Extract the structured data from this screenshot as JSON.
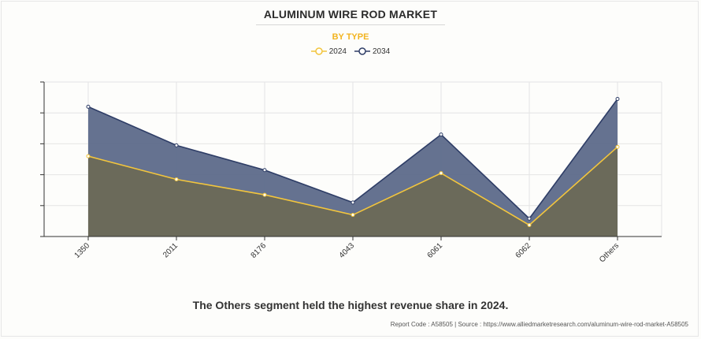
{
  "title": "ALUMINUM WIRE ROD MARKET",
  "subtitle": "BY TYPE",
  "caption": "The Others segment held the highest revenue share in 2024.",
  "footer": {
    "report_code": "Report Code : A58505",
    "separator": "|",
    "source": "Source : https://www.alliedmarketresearch.com/aluminum-wire-rod-market-A58505"
  },
  "colors": {
    "series_2024_line": "#f2c53d",
    "series_2024_fill": "#6b6a5a",
    "series_2034_line": "#2e3d66",
    "series_2034_fill": "#5d6a8a",
    "grid": "#e4e4e4",
    "axis": "#333333"
  },
  "chart_data": {
    "type": "area",
    "categories": [
      "1350",
      "2011",
      "8176",
      "4043",
      "6061",
      "6062",
      "Others"
    ],
    "series": [
      {
        "name": "2024",
        "values": [
          2.6,
          1.85,
          1.35,
          0.7,
          2.05,
          0.37,
          2.9
        ]
      },
      {
        "name": "2034",
        "values": [
          4.2,
          2.95,
          2.15,
          1.1,
          3.3,
          0.58,
          4.45
        ]
      }
    ],
    "ylim": [
      0,
      5
    ],
    "yticks": [
      0,
      1,
      2,
      3,
      4,
      5
    ],
    "grid": true,
    "legend": "top-center",
    "xlabel": "",
    "ylabel": ""
  }
}
